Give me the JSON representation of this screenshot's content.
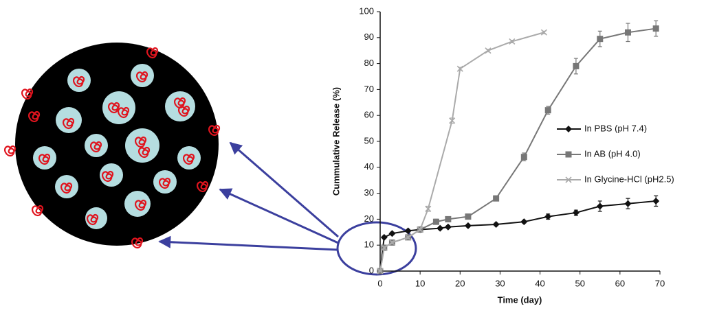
{
  "chart_data": {
    "type": "line",
    "ylabel": "Cummulative Release (%)",
    "xlabel": "Time (day)",
    "xlim": [
      0,
      70
    ],
    "ylim": [
      0,
      100
    ],
    "xticks": [
      0,
      10,
      20,
      30,
      40,
      50,
      60,
      70
    ],
    "yticks": [
      0,
      10,
      20,
      30,
      40,
      50,
      60,
      70,
      80,
      90,
      100
    ],
    "series": [
      {
        "name": "In PBS (pH 7.4)",
        "color": "#111111",
        "marker": "diamond",
        "x": [
          0,
          1,
          3,
          7,
          10,
          15,
          17,
          22,
          29,
          36,
          42,
          49,
          55,
          62,
          69
        ],
        "values": [
          0,
          13,
          14.5,
          15.5,
          16,
          16.5,
          17,
          17.5,
          18,
          19,
          21,
          22.5,
          25,
          26,
          27
        ],
        "errors": [
          0,
          0.5,
          0.5,
          0.5,
          0.5,
          0.5,
          0.5,
          0.5,
          0.5,
          0.5,
          1,
          1,
          2,
          2,
          2
        ]
      },
      {
        "name": "In AB (pH 4.0)",
        "color": "#777777",
        "marker": "square",
        "x": [
          0,
          1,
          3,
          7,
          10,
          14,
          17,
          22,
          29,
          36,
          42,
          49,
          55,
          62,
          69
        ],
        "values": [
          0,
          9,
          11,
          13,
          16,
          19,
          20,
          21,
          28,
          44,
          62,
          79,
          89.5,
          92,
          93.5
        ],
        "errors": [
          0,
          0.5,
          0.5,
          0.5,
          1,
          1,
          1,
          1,
          1,
          1.5,
          1.5,
          3,
          3,
          3.5,
          3
        ]
      },
      {
        "name": "In Glycine-HCl (pH2.5)",
        "color": "#aaaaaa",
        "marker": "x",
        "x": [
          0,
          1,
          3,
          7,
          10,
          12,
          18,
          20,
          27,
          33,
          41
        ],
        "values": [
          0,
          9,
          11,
          13,
          16,
          24,
          58,
          78,
          85,
          88.5,
          92
        ],
        "errors": [
          0,
          0.5,
          0.5,
          0.5,
          0.5,
          1,
          1,
          0.5,
          0.5,
          0.5,
          0.5
        ]
      }
    ]
  }
}
